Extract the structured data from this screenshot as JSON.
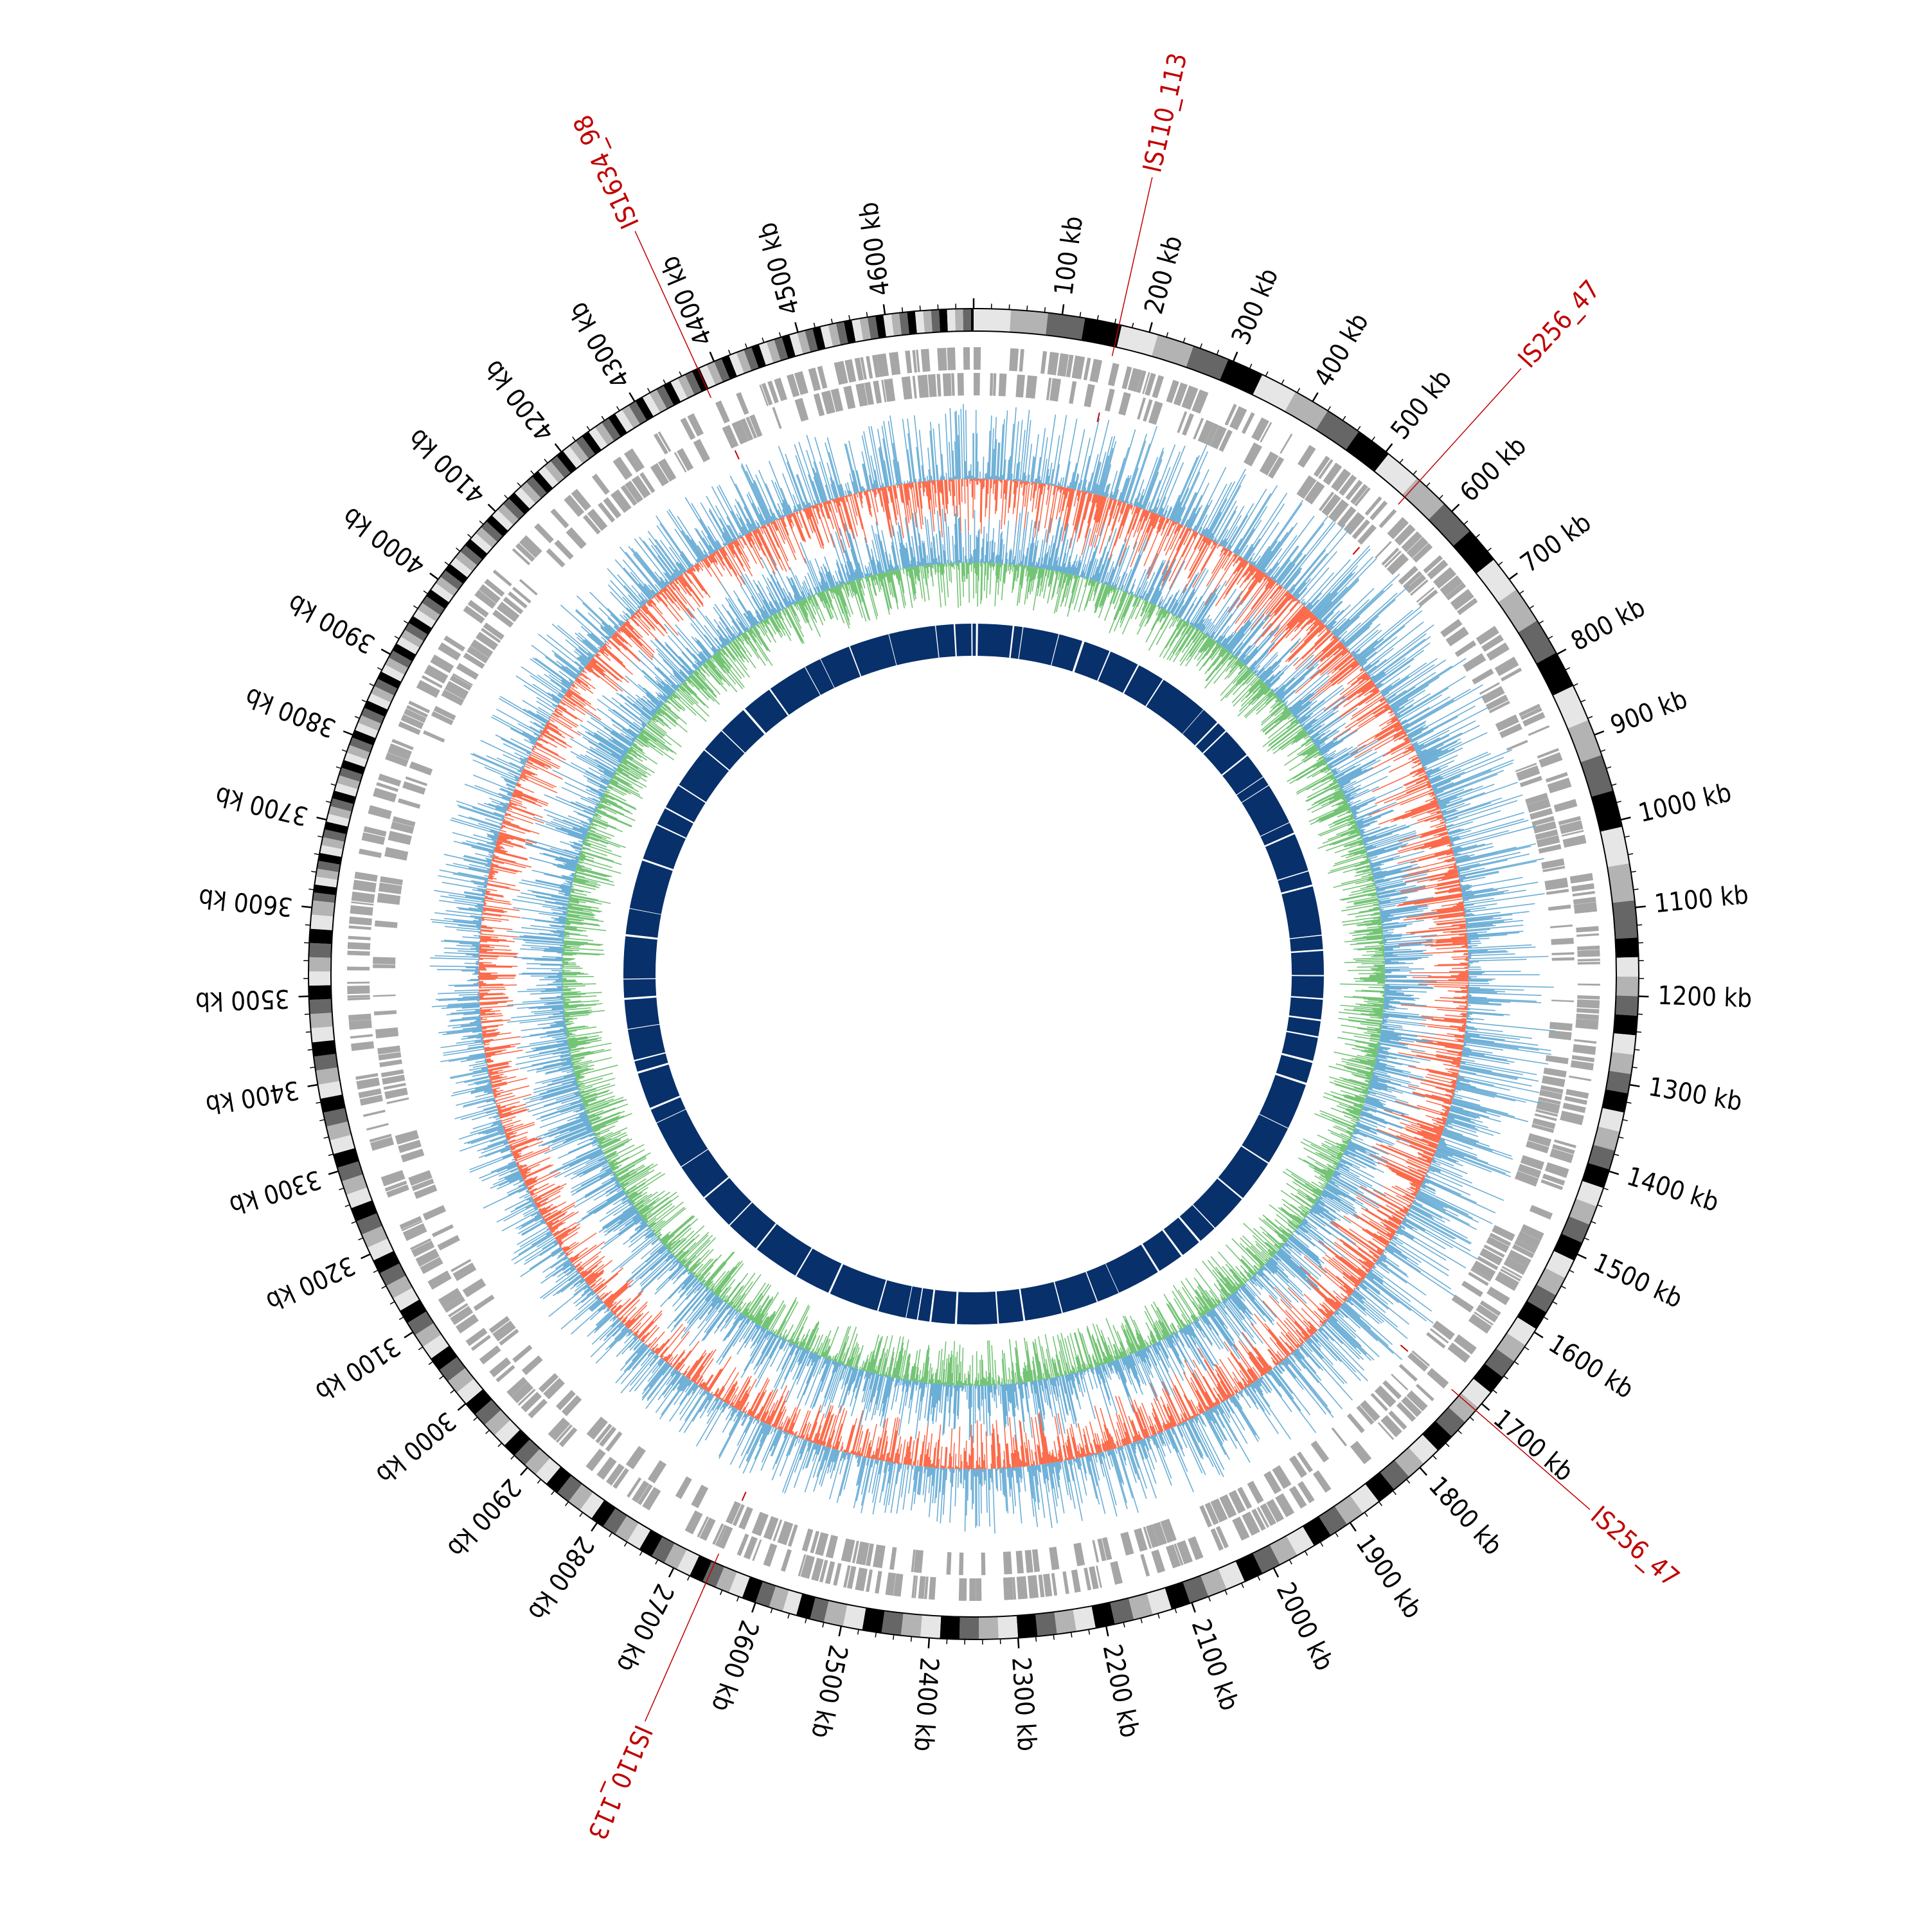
{
  "diagram": {
    "type": "circular-genome-map",
    "genome_length_kb": 4700,
    "tick_labels": [
      "100 kb",
      "200 kb",
      "300 kb",
      "400 kb",
      "500 kb",
      "600 kb",
      "700 kb",
      "800 kb",
      "900 kb",
      "1000 kb",
      "1100 kb",
      "1200 kb",
      "1300 kb",
      "1400 kb",
      "1500 kb",
      "1600 kb",
      "1700 kb",
      "1800 kb",
      "1900 kb",
      "2000 kb",
      "2100 kb",
      "2200 kb",
      "2300 kb",
      "2400 kb",
      "2500 kb",
      "2600 kb",
      "2700 kb",
      "2800 kb",
      "2900 kb",
      "3000 kb",
      "3100 kb",
      "3200 kb",
      "3300 kb",
      "3400 kb",
      "3500 kb",
      "3600 kb",
      "3700 kb",
      "3800 kb",
      "3900 kb",
      "4000 kb",
      "4100 kb",
      "4200 kb",
      "4300 kb",
      "4400 kb",
      "4500 kb",
      "4600 kb"
    ],
    "tick_positions_kb": [
      100,
      200,
      300,
      400,
      500,
      600,
      700,
      800,
      900,
      1000,
      1100,
      1200,
      1300,
      1400,
      1500,
      1600,
      1700,
      1800,
      1900,
      2000,
      2100,
      2200,
      2300,
      2400,
      2500,
      2600,
      2700,
      2800,
      2900,
      3000,
      3100,
      3200,
      3300,
      3400,
      3500,
      3600,
      3700,
      3800,
      3900,
      4000,
      4100,
      4200,
      4300,
      4400,
      4500,
      4600
    ],
    "insertion_sequences": [
      {
        "label": "IS110_113",
        "position_kb": 165
      },
      {
        "label": "IS256_47",
        "position_kb": 550
      },
      {
        "label": "IS256_47",
        "position_kb": 1710
      },
      {
        "label": "IS110_113",
        "position_kb": 2660
      },
      {
        "label": "IS1634_98",
        "position_kb": 4380
      }
    ],
    "tracks": [
      {
        "name": "ideogram-bands",
        "kind": "grayscale-bands"
      },
      {
        "name": "gene-features",
        "kind": "gray-blocks"
      },
      {
        "name": "gc-skew",
        "kind": "histogram",
        "series": [
          "positive",
          "negative"
        ]
      },
      {
        "name": "gc-content",
        "kind": "histogram",
        "series": [
          "above-mean",
          "below-mean"
        ]
      },
      {
        "name": "core-genome",
        "kind": "highlight-ring"
      }
    ],
    "colors": {
      "ideogram_black": "#000000",
      "ideogram_gray_dark": "#666666",
      "ideogram_gray_mid": "#b3b3b3",
      "ideogram_gray_light": "#e6e6e6",
      "gene_block": "#a6a6a6",
      "skew_blue": "#6baed6",
      "skew_red": "#fb6a4a",
      "gc_green": "#74c476",
      "gc_blue": "#6baed6",
      "core_ring": "#08306b",
      "is_marker": "#c00000"
    }
  }
}
